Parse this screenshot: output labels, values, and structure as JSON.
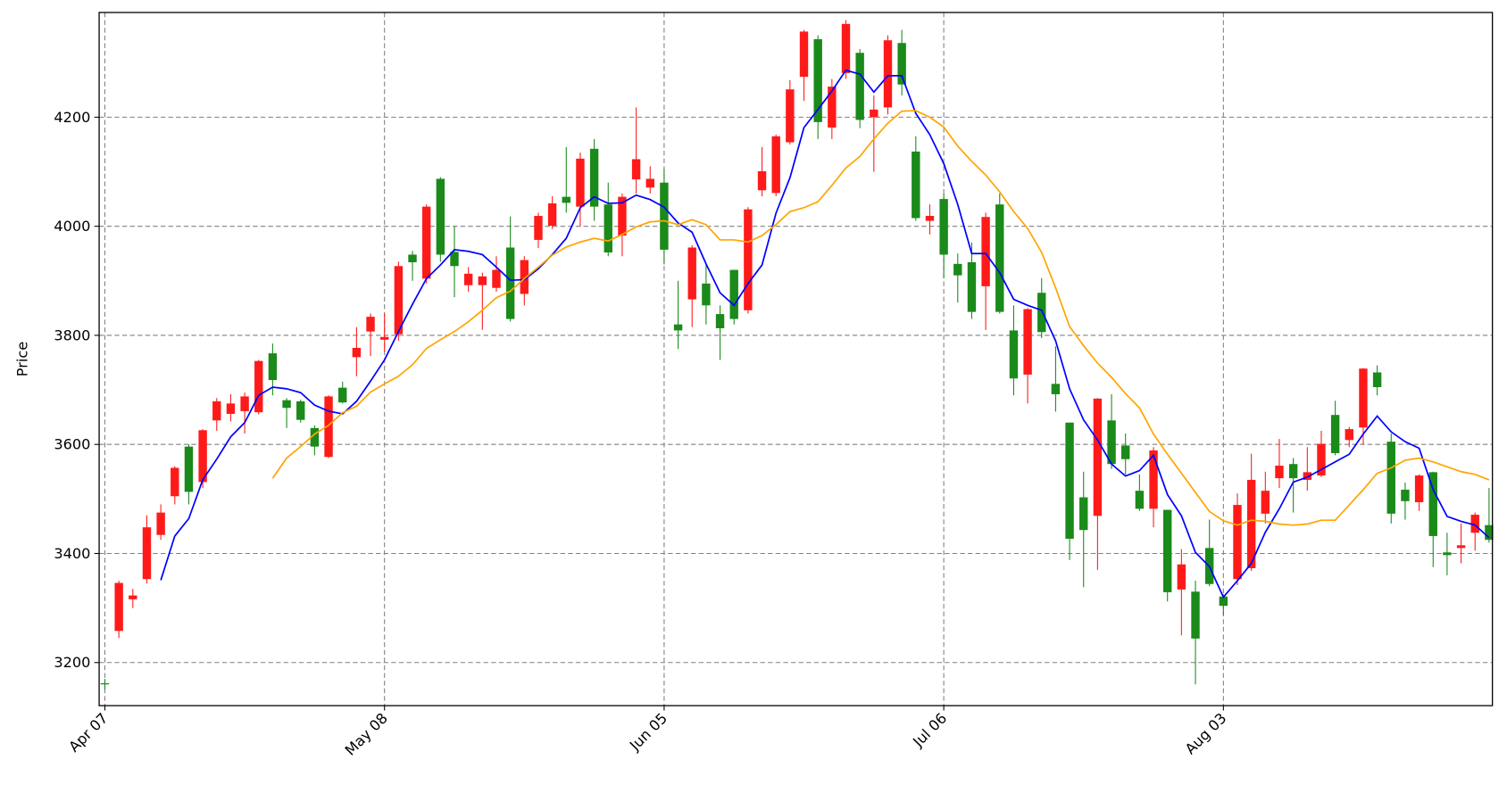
{
  "chart_data": {
    "type": "candlestick",
    "ylabel": "Price",
    "categories": [
      "Apr 07",
      null,
      null,
      null,
      null,
      null,
      null,
      null,
      null,
      null,
      null,
      null,
      null,
      null,
      null,
      null,
      null,
      null,
      null,
      null,
      "May 08",
      null,
      null,
      null,
      null,
      null,
      null,
      null,
      null,
      null,
      null,
      null,
      null,
      null,
      null,
      null,
      null,
      null,
      null,
      null,
      "Jun 05",
      null,
      null,
      null,
      null,
      null,
      null,
      null,
      null,
      null,
      null,
      null,
      null,
      null,
      null,
      null,
      null,
      null,
      null,
      null,
      "Jul 06",
      null,
      null,
      null,
      null,
      null,
      null,
      null,
      null,
      null,
      null,
      null,
      null,
      null,
      null,
      null,
      null,
      null,
      null,
      null,
      "Aug 03",
      null,
      null,
      null,
      null,
      null,
      null,
      null,
      null,
      null,
      null,
      null,
      null,
      null,
      null,
      null,
      null,
      null,
      null,
      null
    ],
    "open": [
      3162,
      3258,
      3316,
      3353,
      3434,
      3505,
      3596,
      3531,
      3644,
      3656,
      3661,
      3659,
      3767,
      3681,
      3679,
      3630,
      3577,
      3704,
      3760,
      3807,
      3792,
      3802,
      3948,
      3904,
      4087,
      3953,
      3892,
      3892,
      3887,
      3961,
      3876,
      3975,
      4001,
      4054,
      4036,
      4142,
      4040,
      3983,
      4086,
      4071,
      4080,
      3820,
      3866,
      3895,
      3839,
      3920,
      3846,
      4066,
      4061,
      4154,
      4274,
      4343,
      4181,
      4281,
      4318,
      4200,
      4218,
      4336,
      4137,
      4010,
      4050,
      3931,
      3934,
      3890,
      4040,
      3809,
      3728,
      3878,
      3711,
      3640,
      3503,
      3469,
      3644,
      3598,
      3515,
      3482,
      3480,
      3334,
      3330,
      3410,
      3321,
      3353,
      3373,
      3473,
      3538,
      3564,
      3535,
      3543,
      3654,
      3608,
      3631,
      3732,
      3605,
      3517,
      3494,
      3549,
      3402,
      3410,
      3438,
      3452
    ],
    "high": [
      3170,
      3350,
      3335,
      3470,
      3490,
      3560,
      3600,
      3628,
      3685,
      3692,
      3695,
      3755,
      3785,
      3685,
      3682,
      3635,
      3690,
      3715,
      3815,
      3840,
      3840,
      3935,
      3955,
      4040,
      4090,
      4000,
      3925,
      3915,
      3945,
      4018,
      3945,
      4025,
      4055,
      4145,
      4135,
      4160,
      4080,
      4060,
      4218,
      4110,
      4105,
      3900,
      3965,
      3930,
      3855,
      3920,
      4035,
      4145,
      4168,
      4268,
      4360,
      4350,
      4270,
      4378,
      4325,
      4240,
      4350,
      4360,
      4165,
      4040,
      4060,
      3950,
      3970,
      4025,
      4060,
      3855,
      3850,
      3905,
      3780,
      3640,
      3550,
      3685,
      3692,
      3620,
      3545,
      3595,
      3480,
      3408,
      3350,
      3462,
      3325,
      3510,
      3583,
      3550,
      3610,
      3575,
      3595,
      3625,
      3680,
      3632,
      3740,
      3745,
      3620,
      3530,
      3545,
      3550,
      3438,
      3455,
      3475,
      3520
    ],
    "low": [
      3150,
      3245,
      3300,
      3345,
      3425,
      3490,
      3490,
      3520,
      3625,
      3642,
      3620,
      3655,
      3690,
      3630,
      3640,
      3580,
      3575,
      3675,
      3725,
      3762,
      3770,
      3790,
      3900,
      3895,
      3935,
      3870,
      3880,
      3810,
      3880,
      3825,
      3855,
      3960,
      3995,
      4025,
      4000,
      4010,
      3945,
      3945,
      4060,
      4060,
      3930,
      3775,
      3815,
      3820,
      3755,
      3820,
      3840,
      4055,
      4055,
      4150,
      4230,
      4160,
      4160,
      4270,
      4180,
      4100,
      4205,
      4240,
      4010,
      3985,
      3905,
      3860,
      3830,
      3810,
      3840,
      3690,
      3675,
      3795,
      3660,
      3388,
      3338,
      3370,
      3555,
      3545,
      3478,
      3448,
      3312,
      3250,
      3160,
      3340,
      3287,
      3342,
      3368,
      3455,
      3520,
      3475,
      3515,
      3540,
      3580,
      3595,
      3600,
      3690,
      3455,
      3462,
      3478,
      3375,
      3360,
      3382,
      3405,
      3420
    ],
    "close": [
      3160,
      3346,
      3323,
      3448,
      3475,
      3557,
      3513,
      3626,
      3679,
      3675,
      3688,
      3753,
      3718,
      3667,
      3645,
      3596,
      3688,
      3677,
      3777,
      3834,
      3797,
      3927,
      3934,
      4036,
      3948,
      3927,
      3913,
      3908,
      3920,
      3830,
      3938,
      4019,
      4042,
      4043,
      4124,
      4036,
      3952,
      4054,
      4123,
      4087,
      3957,
      3809,
      3961,
      3855,
      3813,
      3830,
      4031,
      4101,
      4165,
      4251,
      4357,
      4191,
      4256,
      4371,
      4195,
      4214,
      4341,
      4260,
      4015,
      4019,
      3948,
      3910,
      3843,
      4017,
      3843,
      3721,
      3848,
      3806,
      3692,
      3427,
      3443,
      3684,
      3564,
      3573,
      3482,
      3589,
      3329,
      3380,
      3244,
      3344,
      3304,
      3489,
      3535,
      3515,
      3561,
      3538,
      3549,
      3601,
      3584,
      3628,
      3739,
      3705,
      3473,
      3496,
      3543,
      3432,
      3397,
      3415,
      3471,
      3425
    ],
    "up_color": "#ff1a1a",
    "down_color": "#1a8a1a",
    "lines": [
      {
        "color": "#0000ff",
        "values": [
          null,
          null,
          null,
          null,
          3351,
          3432,
          3464,
          3535,
          3573,
          3614,
          3640,
          3690,
          3705,
          3702,
          3695,
          3672,
          3661,
          3656,
          3679,
          3716,
          3755,
          3807,
          3857,
          3904,
          3929,
          3957,
          3954,
          3948,
          3925,
          3901,
          3902,
          3922,
          3948,
          3978,
          4034,
          4054,
          4042,
          4043,
          4057,
          4049,
          4035,
          4006,
          3989,
          3931,
          3878,
          3855,
          3895,
          3929,
          4024,
          4089,
          4181,
          4214,
          4248,
          4286,
          4279,
          4246,
          4276,
          4276,
          4207,
          4168,
          4115,
          4040,
          3950,
          3950,
          3915,
          3866,
          3855,
          3846,
          3790,
          3702,
          3645,
          3608,
          3564,
          3542,
          3552,
          3580,
          3508,
          3469,
          3402,
          3376,
          3320,
          3350,
          3382,
          3439,
          3482,
          3531,
          3540,
          3554,
          3568,
          3582,
          3619,
          3652,
          3623,
          3605,
          3593,
          3517,
          3468,
          3459,
          3452,
          3429
        ]
      },
      {
        "color": "#ffa500",
        "values": [
          null,
          null,
          null,
          null,
          null,
          null,
          null,
          null,
          null,
          null,
          null,
          null,
          3538,
          3575,
          3596,
          3619,
          3635,
          3658,
          3670,
          3696,
          3711,
          3725,
          3746,
          3776,
          3792,
          3807,
          3825,
          3846,
          3869,
          3881,
          3904,
          3925,
          3947,
          3962,
          3971,
          3978,
          3973,
          3985,
          3999,
          4008,
          4010,
          4003,
          4012,
          4003,
          3975,
          3975,
          3971,
          3983,
          4003,
          4027,
          4034,
          4045,
          4075,
          4107,
          4128,
          4160,
          4189,
          4211,
          4212,
          4200,
          4182,
          4147,
          4119,
          4094,
          4063,
          4027,
          3996,
          3952,
          3887,
          3816,
          3781,
          3749,
          3723,
          3693,
          3667,
          3619,
          3582,
          3547,
          3512,
          3477,
          3460,
          3452,
          3461,
          3459,
          3454,
          3452,
          3454,
          3461,
          3461,
          3489,
          3517,
          3547,
          3557,
          3571,
          3575,
          3568,
          3559,
          3550,
          3545,
          3535
        ]
      }
    ],
    "ylim": [
      3121,
      4392
    ],
    "yticks": [
      3200,
      3400,
      3600,
      3800,
      4000,
      4200
    ],
    "grid": true
  }
}
